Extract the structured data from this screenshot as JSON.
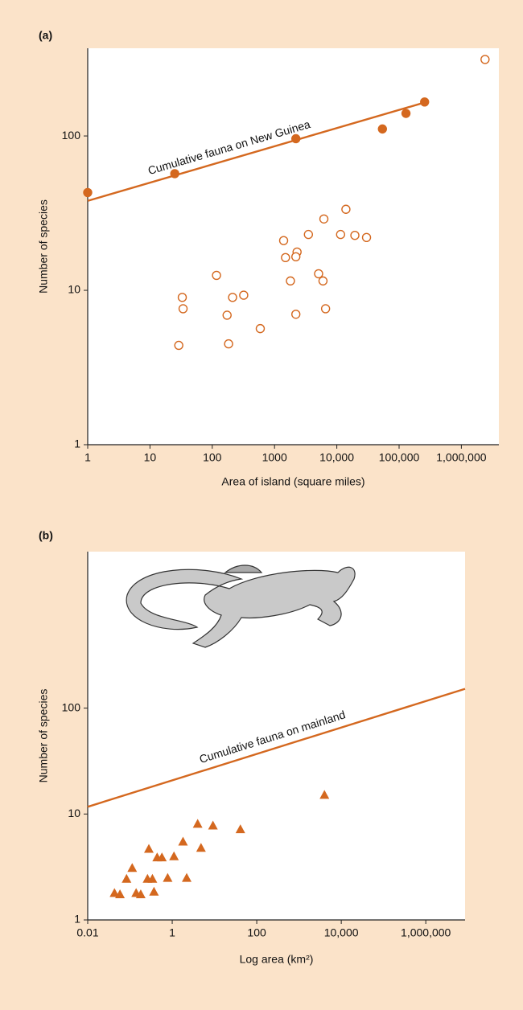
{
  "chart_data": [
    {
      "type": "scatter",
      "panel_label": "(a)",
      "x_label": "Area of island (square miles)",
      "y_label": "Number of species",
      "annotation": "Cumulative fauna on New Guinea",
      "log_x": true,
      "log_y": true,
      "xlim": [
        1,
        4000000
      ],
      "ylim": [
        1,
        370
      ],
      "xticks": [
        1,
        10,
        100,
        1000,
        {
          "value": 10000,
          "label": "10,000"
        },
        {
          "value": 100000,
          "label": "100,000"
        },
        {
          "value": 1000000,
          "label": "1,000,000"
        }
      ],
      "yticks": [
        1,
        10,
        100
      ],
      "series": [
        {
          "mode": "line",
          "color": "#d4681f",
          "x": [
            1,
            260000
          ],
          "values": [
            38,
            165
          ]
        },
        {
          "mode": "markers",
          "marker": "circle",
          "filled": true,
          "color": "#d4681f",
          "x": [
            1,
            25,
            2200,
            54000,
            129000,
            257000
          ],
          "values": [
            43,
            57,
            96,
            111,
            140,
            166
          ]
        },
        {
          "mode": "markers",
          "marker": "circle",
          "filled": false,
          "color": "#d4681f",
          "x": [
            2400000,
            14000,
            6200,
            3500,
            11500,
            19500,
            30000,
            1400,
            2300,
            2200,
            1500,
            5100,
            6000,
            1800,
            117,
            320,
            212,
            33,
            34,
            6600,
            173,
            2200,
            590,
            29,
            183
          ],
          "values": [
            313,
            33.5,
            29,
            23,
            23,
            22.7,
            22,
            21,
            17.7,
            16.5,
            16.3,
            12.8,
            11.5,
            11.5,
            12.5,
            9.3,
            9.0,
            9.0,
            7.6,
            7.6,
            6.9,
            7.0,
            5.65,
            4.4,
            4.5
          ]
        }
      ]
    },
    {
      "type": "scatter",
      "panel_label": "(b)",
      "x_label": "Log area (km²)",
      "y_label": "Number of species",
      "annotation": "Cumulative fauna on mainland",
      "log_x": true,
      "log_y": true,
      "xlim": [
        0.01,
        8500000
      ],
      "ylim": [
        1,
        3000
      ],
      "xticks": [
        0.01,
        1,
        100,
        {
          "value": 10000,
          "label": "10,000"
        },
        {
          "value": 1000000,
          "label": "1,000,000"
        }
      ],
      "yticks": [
        1,
        10,
        100
      ],
      "series": [
        {
          "mode": "line",
          "color": "#d4681f",
          "x": [
            0.01,
            8500000
          ],
          "values": [
            11.7,
            152
          ]
        },
        {
          "mode": "markers",
          "marker": "triangle",
          "filled": true,
          "color": "#d4681f",
          "x": [
            0.043,
            0.058,
            0.083,
            0.113,
            0.14,
            0.18,
            0.28,
            0.26,
            0.37,
            0.44,
            0.57,
            0.34,
            0.78,
            1.1,
            1.8,
            2.2,
            4.0,
            4.8,
            9.2,
            41,
            4000
          ],
          "values": [
            1.8,
            1.75,
            2.45,
            3.1,
            1.8,
            1.75,
            4.7,
            2.45,
            1.85,
            3.9,
            3.9,
            2.45,
            2.5,
            4.0,
            5.5,
            2.5,
            8.1,
            4.8,
            7.8,
            7.2,
            15.2
          ]
        }
      ]
    }
  ]
}
